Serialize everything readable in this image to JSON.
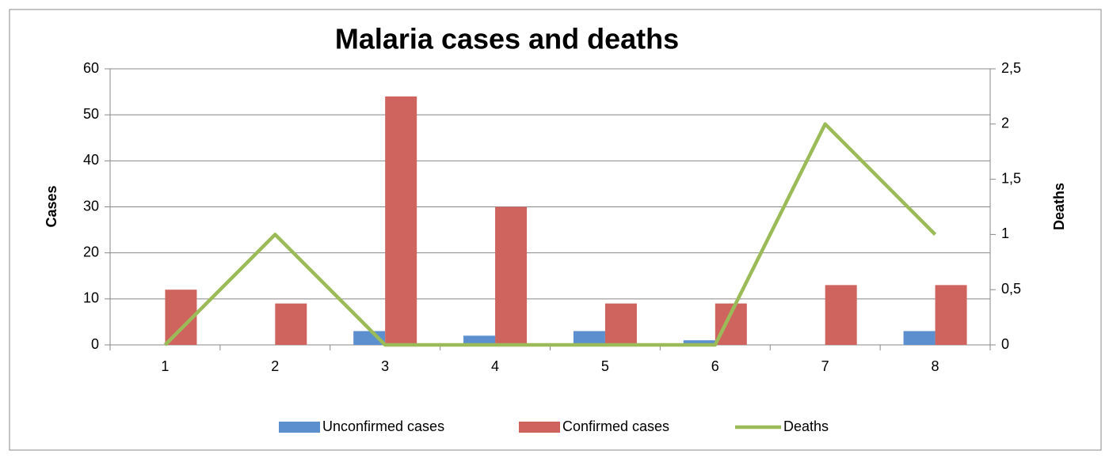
{
  "chart_data": {
    "type": "bar",
    "title": "Malaria cases  and deaths",
    "y_label": "Cases",
    "y2_label": "Deaths",
    "categories": [
      "1",
      "2",
      "3",
      "4",
      "5",
      "6",
      "7",
      "8"
    ],
    "series": [
      {
        "name": "Unconfirmed cases",
        "color": "#5b8fcd",
        "values": [
          0,
          0,
          3,
          2,
          3,
          1,
          0,
          3
        ]
      },
      {
        "name": "Confirmed cases",
        "color": "#cf645f",
        "values": [
          12,
          9,
          54,
          30,
          9,
          9,
          13,
          13
        ]
      },
      {
        "name": "Deaths",
        "color": "#9bbb59",
        "type": "line",
        "axis": "y2",
        "values": [
          0,
          1,
          0,
          0,
          0,
          0,
          2,
          1
        ]
      }
    ],
    "ylim": [
      0,
      60
    ],
    "yticks": [
      0,
      10,
      20,
      30,
      40,
      50,
      60
    ],
    "y2lim": [
      0,
      2.5
    ],
    "y2ticks": [
      0,
      {
        "value": 0.5,
        "label": "0,5"
      },
      1,
      {
        "value": 1.5,
        "label": "1,5"
      },
      2,
      {
        "value": 2.5,
        "label": "2,5"
      }
    ],
    "grid": true,
    "legend": "bottom"
  }
}
